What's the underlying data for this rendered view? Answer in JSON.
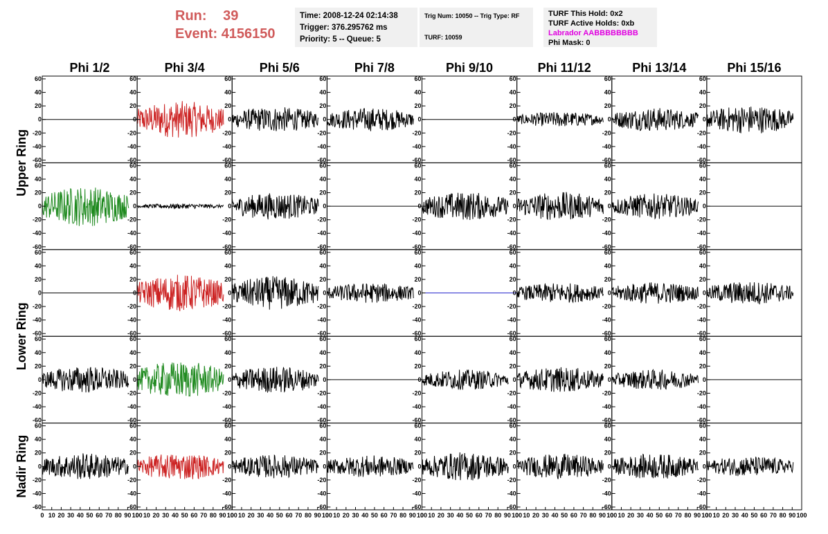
{
  "header": {
    "run_label": "Run:",
    "run_value": "39",
    "event_label": "Event:",
    "event_value": "4156150",
    "time": "Time: 2008-12-24 02:14:38",
    "trigger": "Trigger: 376.295762 ms",
    "priority": "Priority: 5 -- Queue: 5",
    "trig_num": "Trig Num: 10050 -- Trig Type: RF",
    "turf": "TURF: 10059",
    "turf_this_hold": "TURF This Hold: 0x2",
    "turf_active_holds": "TURF Active Holds: 0xb",
    "labrador": "Labrador AABBBBBBBB",
    "phi_mask": "Phi Mask: 0"
  },
  "colors": {
    "header_red": "#d05a5a",
    "trace_black": "#000000",
    "trace_red": "#cc2222",
    "trace_green": "#1f8a1f",
    "trace_blue": "#2222cc",
    "magenta": "#e000e0",
    "info_bg": "#f0f0f0"
  },
  "chart_data": {
    "type": "line",
    "columns": [
      "Phi 1/2",
      "Phi 3/4",
      "Phi 5/6",
      "Phi 7/8",
      "Phi 9/10",
      "Phi 11/12",
      "Phi 13/14",
      "Phi 15/16"
    ],
    "row_groups": [
      "Upper Ring",
      "Lower Ring",
      "Nadir Ring"
    ],
    "x_ticks": [
      "0",
      "10",
      "20",
      "30",
      "40",
      "50",
      "60",
      "70",
      "80",
      "90",
      "100"
    ],
    "y_ticks": [
      "60",
      "40",
      "20",
      "0",
      "-20",
      "-40",
      "-60"
    ],
    "xlim": [
      0,
      100
    ],
    "ylim": [
      -60,
      60
    ],
    "rows": 5,
    "traces": [
      {
        "row": 0,
        "col": 0,
        "amp": 0,
        "color": "black"
      },
      {
        "row": 0,
        "col": 1,
        "amp": 22,
        "color": "red"
      },
      {
        "row": 0,
        "col": 2,
        "amp": 15,
        "color": "black"
      },
      {
        "row": 0,
        "col": 3,
        "amp": 14,
        "color": "black"
      },
      {
        "row": 0,
        "col": 4,
        "amp": 0,
        "color": "black"
      },
      {
        "row": 0,
        "col": 5,
        "amp": 9,
        "color": "black"
      },
      {
        "row": 0,
        "col": 6,
        "amp": 14,
        "color": "black"
      },
      {
        "row": 0,
        "col": 7,
        "amp": 17,
        "color": "black"
      },
      {
        "row": 1,
        "col": 0,
        "amp": 24,
        "color": "green"
      },
      {
        "row": 1,
        "col": 1,
        "amp": 3,
        "color": "black"
      },
      {
        "row": 1,
        "col": 2,
        "amp": 16,
        "color": "black"
      },
      {
        "row": 1,
        "col": 3,
        "amp": 0,
        "color": "black"
      },
      {
        "row": 1,
        "col": 4,
        "amp": 17,
        "color": "black"
      },
      {
        "row": 1,
        "col": 5,
        "amp": 17,
        "color": "black"
      },
      {
        "row": 1,
        "col": 6,
        "amp": 15,
        "color": "black"
      },
      {
        "row": 1,
        "col": 7,
        "amp": 0,
        "color": "black"
      },
      {
        "row": 2,
        "col": 0,
        "amp": 0,
        "color": "black"
      },
      {
        "row": 2,
        "col": 1,
        "amp": 22,
        "color": "red"
      },
      {
        "row": 2,
        "col": 2,
        "amp": 20,
        "color": "black"
      },
      {
        "row": 2,
        "col": 3,
        "amp": 12,
        "color": "black"
      },
      {
        "row": 2,
        "col": 4,
        "amp": 0,
        "color": "blue"
      },
      {
        "row": 2,
        "col": 5,
        "amp": 12,
        "color": "black"
      },
      {
        "row": 2,
        "col": 6,
        "amp": 13,
        "color": "black"
      },
      {
        "row": 2,
        "col": 7,
        "amp": 14,
        "color": "black"
      },
      {
        "row": 3,
        "col": 0,
        "amp": 16,
        "color": "black"
      },
      {
        "row": 3,
        "col": 1,
        "amp": 22,
        "color": "green"
      },
      {
        "row": 3,
        "col": 2,
        "amp": 16,
        "color": "black"
      },
      {
        "row": 3,
        "col": 3,
        "amp": 0,
        "color": "black"
      },
      {
        "row": 3,
        "col": 4,
        "amp": 12,
        "color": "black"
      },
      {
        "row": 3,
        "col": 5,
        "amp": 15,
        "color": "black"
      },
      {
        "row": 3,
        "col": 6,
        "amp": 12,
        "color": "black"
      },
      {
        "row": 3,
        "col": 7,
        "amp": 0,
        "color": "black"
      },
      {
        "row": 4,
        "col": 0,
        "amp": 16,
        "color": "black"
      },
      {
        "row": 4,
        "col": 1,
        "amp": 16,
        "color": "red"
      },
      {
        "row": 4,
        "col": 2,
        "amp": 14,
        "color": "black"
      },
      {
        "row": 4,
        "col": 3,
        "amp": 13,
        "color": "black"
      },
      {
        "row": 4,
        "col": 4,
        "amp": 17,
        "color": "black"
      },
      {
        "row": 4,
        "col": 5,
        "amp": 15,
        "color": "black"
      },
      {
        "row": 4,
        "col": 6,
        "amp": 15,
        "color": "black"
      },
      {
        "row": 4,
        "col": 7,
        "amp": 12,
        "color": "black"
      }
    ]
  }
}
